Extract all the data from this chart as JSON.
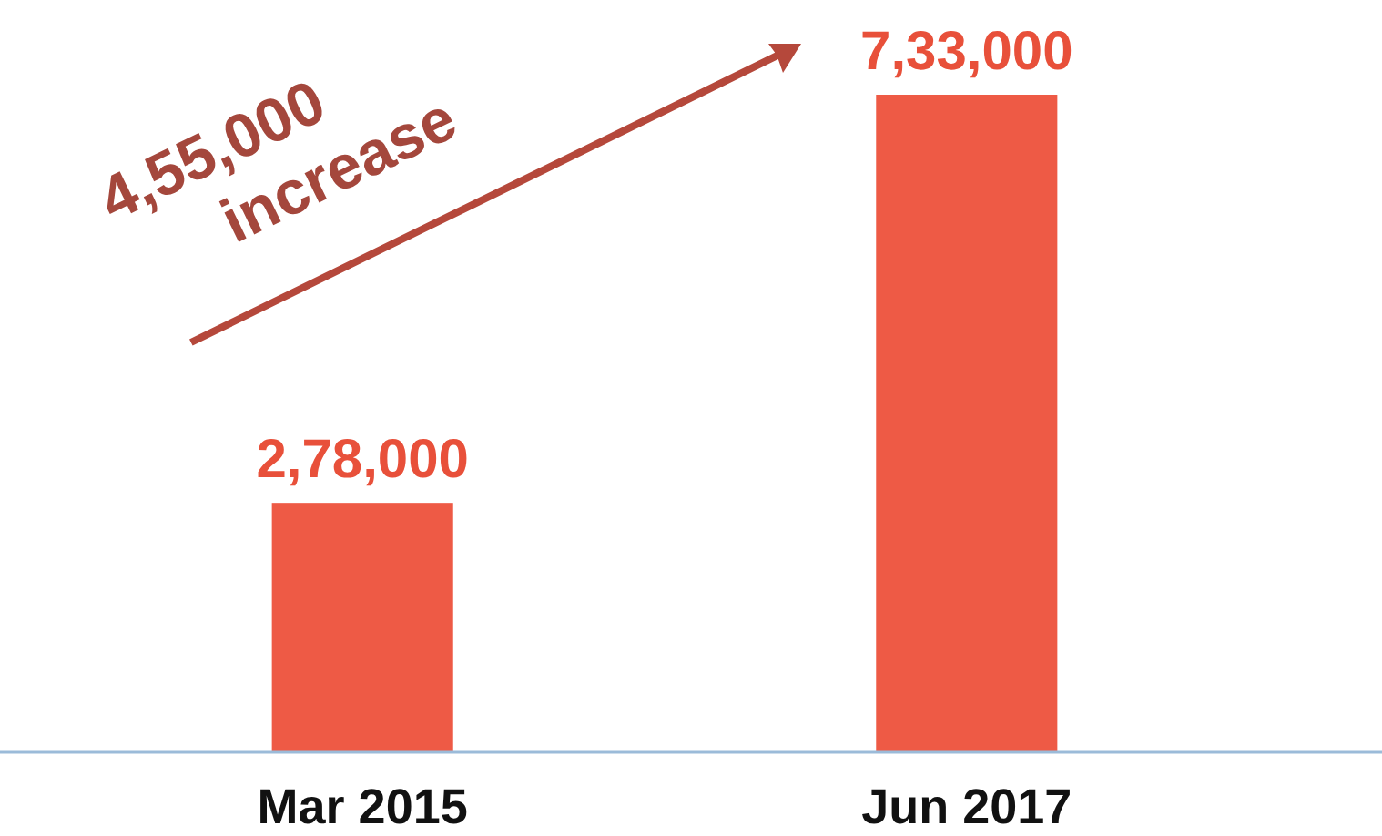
{
  "chart_data": {
    "type": "bar",
    "categories": [
      "Mar 2015",
      "Jun 2017"
    ],
    "values": [
      278000,
      733000
    ],
    "color": "#ee5a45",
    "value_labels": [
      "2,78,000",
      "7,33,000"
    ],
    "annotations": [
      "4,55,000 increase"
    ]
  }
}
